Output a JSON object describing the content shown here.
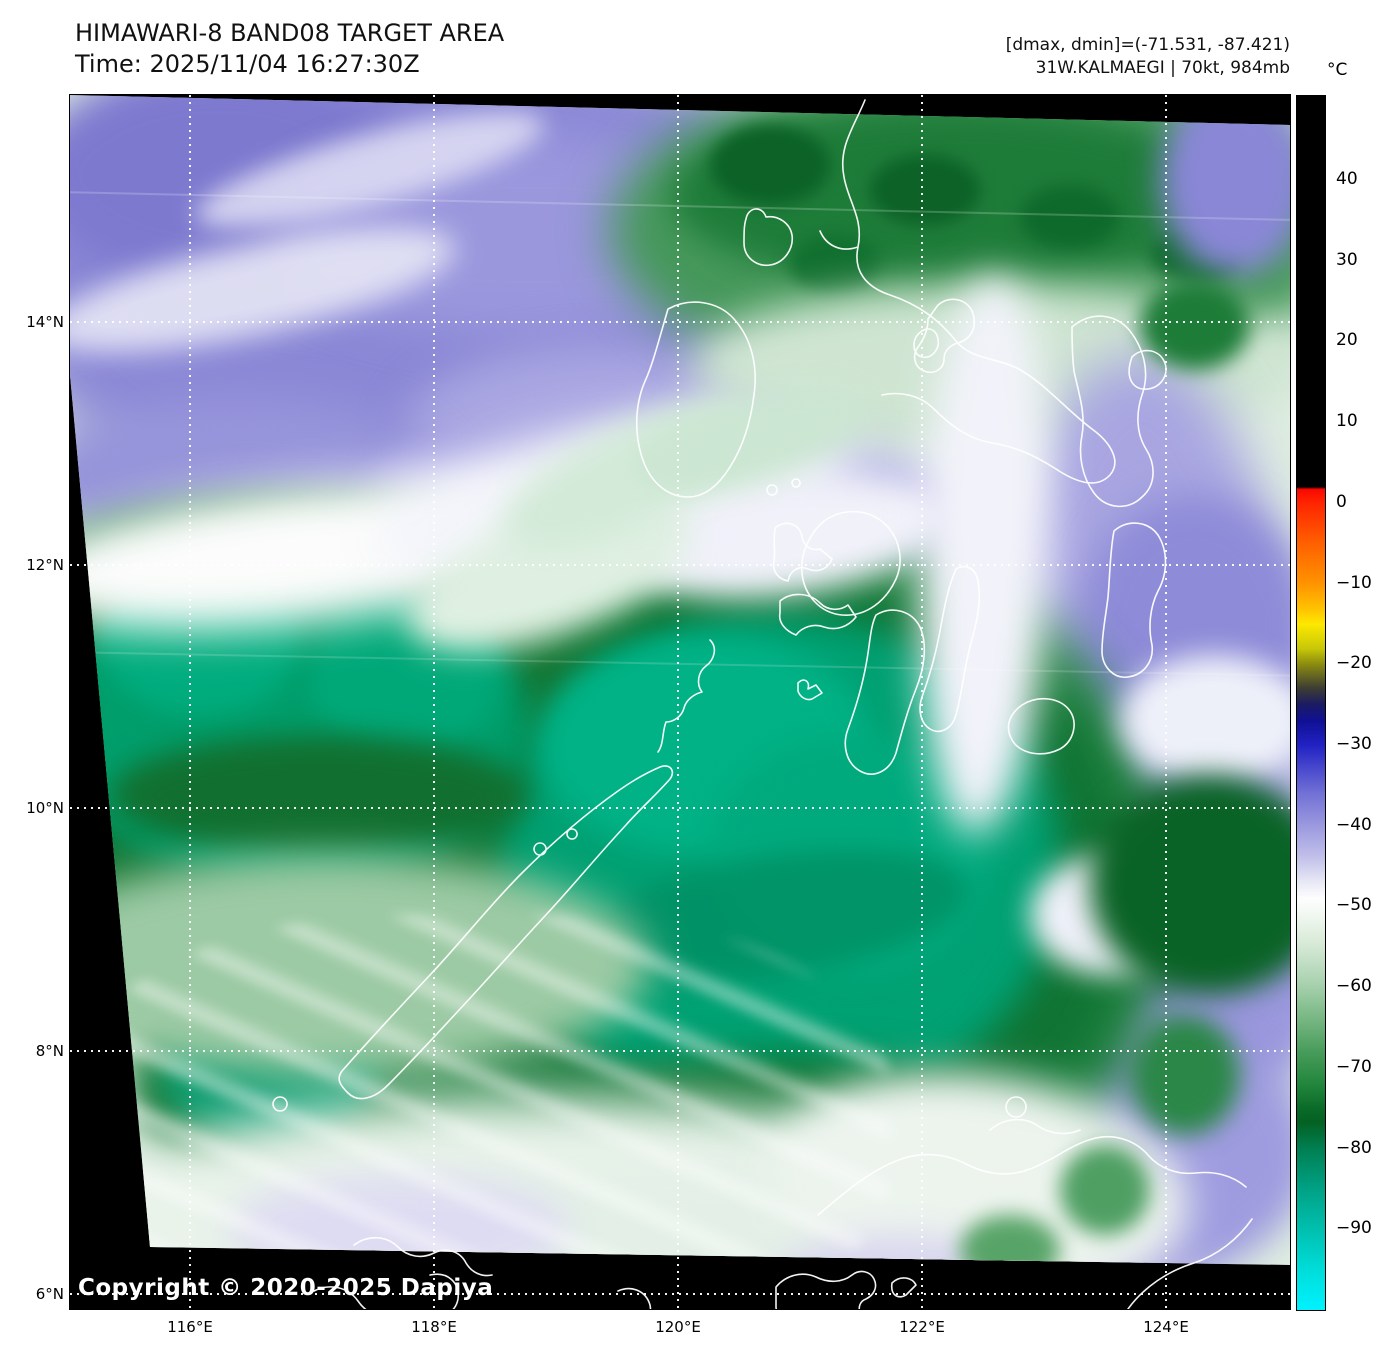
{
  "header": {
    "title": "HIMAWARI-8 BAND08 TARGET AREA",
    "time_line": "Time: 2025/11/04 16:27:30Z",
    "stats_line": "[dmax, dmin]=(-71.531, -87.421)",
    "storm_line": "31W.KALMAEGI | 70kt, 984mb"
  },
  "colorbar": {
    "unit": "°C",
    "ticks": [
      40,
      30,
      20,
      10,
      0,
      -10,
      -20,
      -30,
      -40,
      -50,
      -60,
      -70,
      -80,
      -90
    ],
    "vmax": 50.4,
    "vmin": -100
  },
  "axes": {
    "lat": [
      {
        "label": "14°N",
        "deg": 14
      },
      {
        "label": "12°N",
        "deg": 12
      },
      {
        "label": "10°N",
        "deg": 10
      },
      {
        "label": "8°N",
        "deg": 8
      },
      {
        "label": "6°N",
        "deg": 6
      }
    ],
    "lon": [
      {
        "label": "116°E",
        "deg": 116
      },
      {
        "label": "118°E",
        "deg": 118
      },
      {
        "label": "120°E",
        "deg": 120
      },
      {
        "label": "122°E",
        "deg": 122
      },
      {
        "label": "124°E",
        "deg": 124
      }
    ]
  },
  "overlay": {
    "copyright": "Copyright © 2020-2025 Dapiya"
  },
  "colors": {
    "no_data_background": "#000000",
    "coastline": "#ffffff",
    "gridline": "#ffffff",
    "cold_cloud_teal": "#00a578",
    "deep_convection_green": "#0f7331",
    "warm_moisture_purple": "#8b88d6",
    "colorbar_cyan_end": "#00f2ff"
  }
}
